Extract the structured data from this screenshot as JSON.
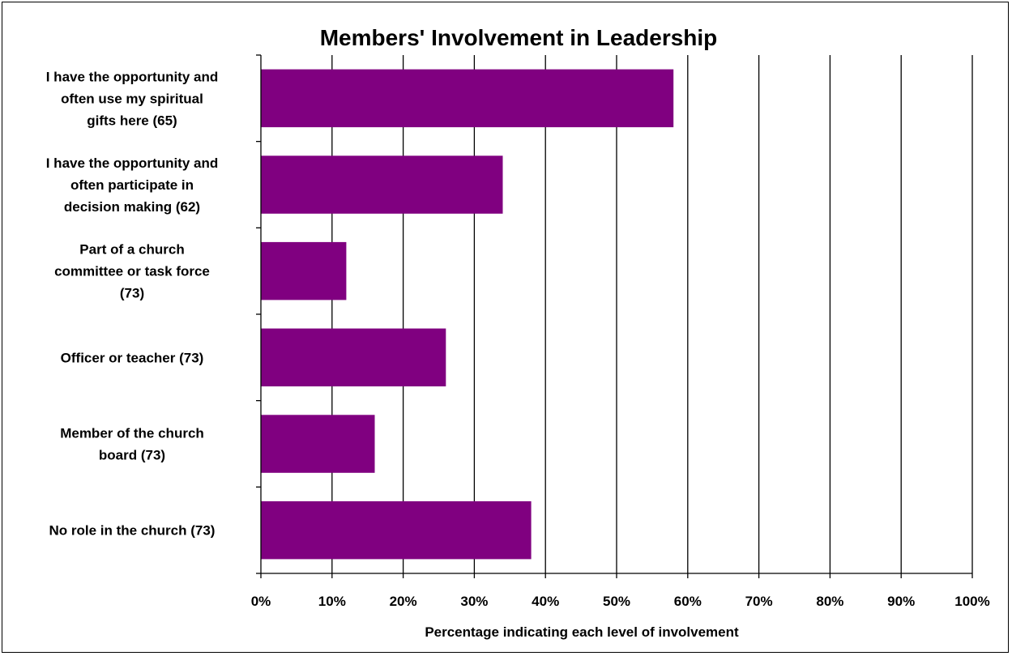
{
  "chart_data": {
    "type": "bar",
    "orientation": "horizontal",
    "title": "Members' Involvement in Leadership",
    "xlabel": "Percentage indicating each level of involvement",
    "ylabel": "",
    "xlim": [
      0,
      100
    ],
    "x_ticks": [
      "0%",
      "10%",
      "20%",
      "30%",
      "40%",
      "50%",
      "60%",
      "70%",
      "80%",
      "90%",
      "100%"
    ],
    "grid": "vertical",
    "legend": "none",
    "bar_color": "#800080",
    "categories": [
      "I have the opportunity and often use my spiritual gifts here (65)",
      "I have the opportunity and often participate in decision making (62)",
      "Part of a church committee or task force (73)",
      "Officer or teacher (73)",
      "Member of the church board (73)",
      "No role in the church (73)"
    ],
    "category_lines": [
      [
        "I have the opportunity and",
        "often use my spiritual",
        "gifts here (65)"
      ],
      [
        "I have the opportunity and",
        "often participate in",
        "decision making (62)"
      ],
      [
        "Part of a church",
        "committee or task force",
        "(73)"
      ],
      [
        "Officer or teacher (73)"
      ],
      [
        "Member of the church",
        "board (73)"
      ],
      [
        "No role in the church (73)"
      ]
    ],
    "values": [
      58,
      34,
      12,
      26,
      16,
      38
    ]
  }
}
